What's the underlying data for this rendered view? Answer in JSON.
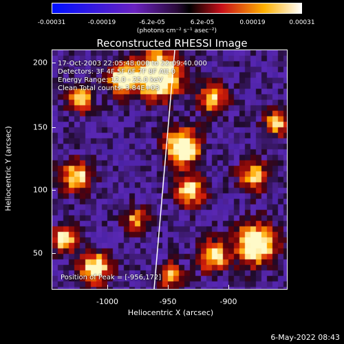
{
  "colorbar": {
    "ticks": [
      "-0.00031",
      "-0.00019",
      "-6.2e-05",
      "6.2e-05",
      "0.00019",
      "0.00031"
    ],
    "units": "(photons cm⁻² s⁻¹ asec⁻²)"
  },
  "title": "Reconstructed RHESSI Image",
  "info": {
    "line1": "17-Oct-2003 22:05:48.000 to 22:09:40.000",
    "line2": "Detectors: 3F 4F 5F 6F 7F 8F  Att 0",
    "line3": "Energy Range: 12.0 - 25.0 keV",
    "line4": "Clean    Total counts: 3.84E+03",
    "peak": "Position of Peak = [-956,172]"
  },
  "axes": {
    "xlabel": "Heliocentric X (arcsec)",
    "ylabel": "Heliocentric Y (arcsec)",
    "xticks": [
      "-1000",
      "-950",
      "-900"
    ],
    "yticks": [
      "200",
      "150",
      "100",
      "50"
    ]
  },
  "date": "6-May-2022 08:43"
}
